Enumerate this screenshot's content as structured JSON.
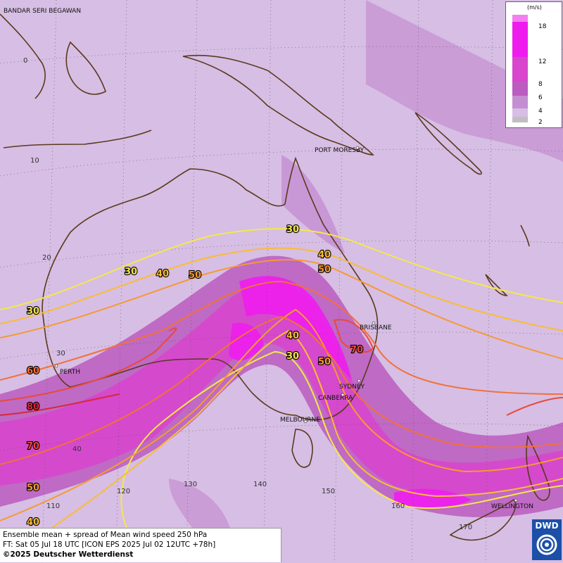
{
  "legend": {
    "unit": "(m/s)",
    "ticks": [
      "18",
      "12",
      "8",
      "6",
      "4",
      "2"
    ],
    "colors": [
      "#f47ff0",
      "#ee1ded",
      "#d746cc",
      "#bb5cc0",
      "#c48fd2",
      "#d7bee4",
      "#bfbfbf"
    ]
  },
  "places": {
    "bandar": "BANDAR SERI BEGAWAN",
    "port_moresby": "PORT MORESBY",
    "brisbane": "BRISBANE",
    "perth": "PERTH",
    "sydney": "SYDNEY",
    "canberra": "CANBERRA",
    "melbourne": "MELBOURNE",
    "wellington": "WELLINGTON"
  },
  "grid_labels": {
    "lat_0": "0",
    "lat_10": "10",
    "lat_20": "20",
    "lat_30": "30",
    "lat_40": "40",
    "lon_110": "110",
    "lon_120": "120",
    "lon_130": "130",
    "lon_140": "140",
    "lon_150": "150",
    "lon_160": "160",
    "lon_170": "170"
  },
  "contours": {
    "c30": "30",
    "c40": "40",
    "c50": "50",
    "c60": "60",
    "c70": "70",
    "c80": "80"
  },
  "contour_colors": {
    "c30": "#f5e84a",
    "c40": "#f8bd35",
    "c50": "#f59a33",
    "c60": "#f2703a",
    "c70": "#e84a3a",
    "c80": "#d8283a"
  },
  "footer": {
    "line1": "Ensemble mean + spread of Mean wind speed 250 hPa",
    "line2": "FT: Sat 05 Jul 18 UTC [ICON EPS 2025 Jul 02 12UTC +78h]",
    "line3": "©2025 Deutscher Wetterdienst"
  },
  "logo": {
    "text": "DWD"
  }
}
